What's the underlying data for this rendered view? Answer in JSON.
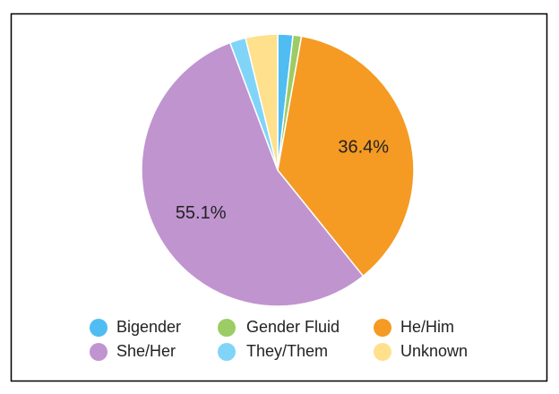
{
  "chart_data": {
    "type": "pie",
    "categories": [
      "Bigender",
      "Gender Fluid",
      "He/Him",
      "She/Her",
      "They/Them",
      "Unknown"
    ],
    "values": [
      1.8,
      1.0,
      36.4,
      55.1,
      1.9,
      3.8
    ],
    "value_labels": [
      null,
      null,
      "36.4%",
      "55.1%",
      null,
      null
    ],
    "colors": [
      "#4fbdf2",
      "#9ccc65",
      "#f59a23",
      "#c094cf",
      "#80d4f8",
      "#ffe08c"
    ],
    "legend": "bottom"
  }
}
